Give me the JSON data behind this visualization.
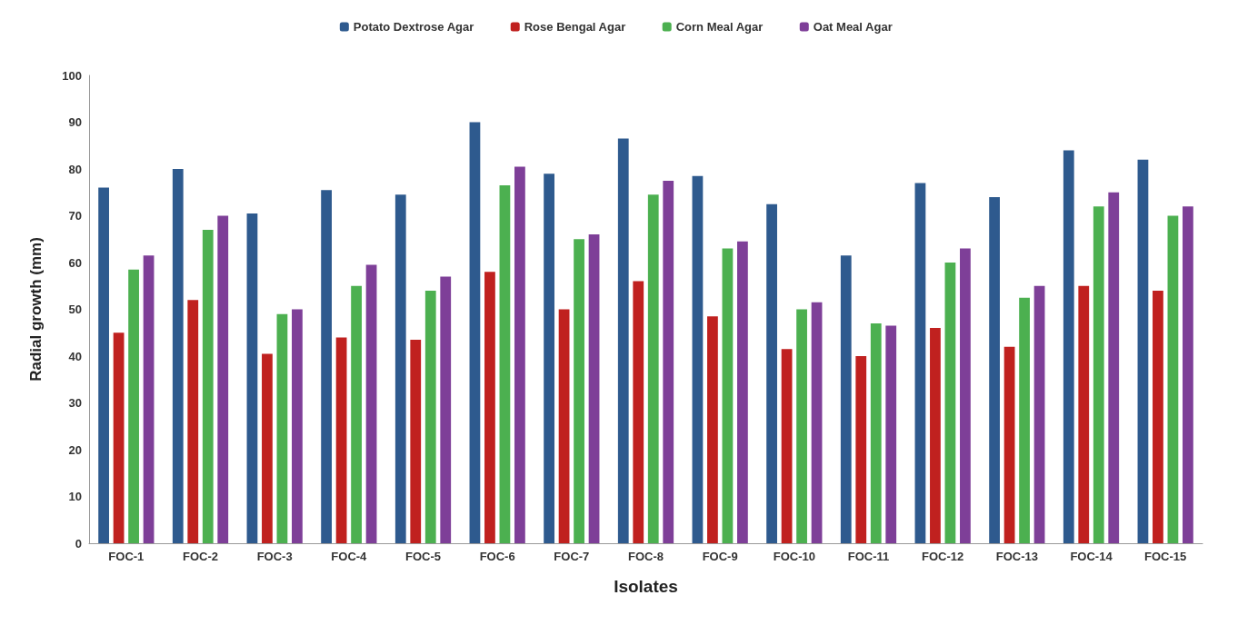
{
  "chart_data": {
    "type": "bar",
    "xlabel": "Isolates",
    "ylabel": "Radial growth (mm)",
    "categories": [
      "FOC-1",
      "FOC-2",
      "FOC-3",
      "FOC-4",
      "FOC-5",
      "FOC-6",
      "FOC-7",
      "FOC-8",
      "FOC-9",
      "FOC-10",
      "FOC-11",
      "FOC-12",
      "FOC-13",
      "FOC-14",
      "FOC-15"
    ],
    "series": [
      {
        "name": "Potato Dextrose Agar",
        "color": "#2e5a8e",
        "values": [
          76,
          80,
          70.5,
          75.5,
          74.5,
          90,
          79,
          86.5,
          78.5,
          72.5,
          61.5,
          77,
          74,
          84,
          82
        ]
      },
      {
        "name": "Rose Bengal Agar",
        "color": "#c0211f",
        "values": [
          45,
          52,
          40.5,
          44,
          43.5,
          58,
          50,
          56,
          48.5,
          41.5,
          40,
          46,
          42,
          55,
          54
        ]
      },
      {
        "name": "Corn Meal Agar",
        "color": "#4cb050",
        "values": [
          58.5,
          67,
          49,
          55,
          54,
          76.5,
          65,
          74.5,
          63,
          50,
          47,
          60,
          52.5,
          72,
          70
        ]
      },
      {
        "name": "Oat Meal Agar",
        "color": "#7e3f98",
        "values": [
          61.5,
          70,
          50,
          59.5,
          57,
          80.5,
          66,
          77.5,
          64.5,
          51.5,
          46.5,
          63,
          55,
          75,
          72
        ]
      }
    ],
    "ylim": [
      0,
      100
    ],
    "yticks": [
      0,
      10,
      20,
      30,
      40,
      50,
      60,
      70,
      80,
      90,
      100
    ],
    "grid": false,
    "legend": "top"
  }
}
